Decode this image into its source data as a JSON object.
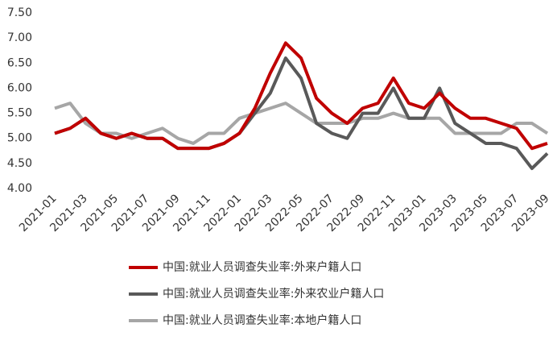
{
  "chart_data": {
    "type": "line",
    "categories": [
      "2021-01",
      null,
      "2021-03",
      null,
      "2021-05",
      null,
      "2021-07",
      null,
      "2021-09",
      null,
      "2021-11",
      null,
      "2022-01",
      null,
      "2022-03",
      null,
      "2022-05",
      null,
      "2022-07",
      null,
      "2022-09",
      null,
      "2022-11",
      null,
      "2023-01",
      null,
      "2023-03",
      null,
      "2023-05",
      null,
      "2023-07",
      null,
      "2023-09"
    ],
    "series": [
      {
        "name": "中国:就业人员调查失业率:外来户籍人口",
        "color": "#c00000",
        "values": [
          5.1,
          5.2,
          5.4,
          5.1,
          5.0,
          5.1,
          5.0,
          5.0,
          4.8,
          4.8,
          4.8,
          4.9,
          5.1,
          5.6,
          6.3,
          6.9,
          6.6,
          5.8,
          5.5,
          5.3,
          5.6,
          5.7,
          6.2,
          5.7,
          5.6,
          5.9,
          5.6,
          5.4,
          5.4,
          5.3,
          5.2,
          4.8,
          4.9
        ]
      },
      {
        "name": "中国:就业人员调查失业率:外来农业户籍人口",
        "color": "#595959",
        "values": [
          5.1,
          5.2,
          5.4,
          5.1,
          5.0,
          5.1,
          5.0,
          5.0,
          4.8,
          4.8,
          4.8,
          4.9,
          5.1,
          5.5,
          5.9,
          6.6,
          6.2,
          5.3,
          5.1,
          5.0,
          5.5,
          5.5,
          6.0,
          5.4,
          5.4,
          6.0,
          5.3,
          5.1,
          4.9,
          4.9,
          4.8,
          4.4,
          4.7
        ]
      },
      {
        "name": "中国:就业人员调查失业率:本地户籍人口",
        "color": "#a6a6a6",
        "values": [
          5.6,
          5.7,
          5.3,
          5.1,
          5.1,
          5.0,
          5.1,
          5.2,
          5.0,
          4.9,
          5.1,
          5.1,
          5.4,
          5.5,
          5.6,
          5.7,
          5.5,
          5.3,
          5.3,
          5.3,
          5.4,
          5.4,
          5.5,
          5.4,
          5.4,
          5.4,
          5.1,
          5.1,
          5.1,
          5.1,
          5.3,
          5.3,
          5.1
        ]
      }
    ],
    "ylim": [
      4.0,
      7.5
    ],
    "yticks": [
      {
        "value": 4.0,
        "label": "4.00"
      },
      {
        "value": 4.5,
        "label": "4.50"
      },
      {
        "value": 5.0,
        "label": "5.00"
      },
      {
        "value": 5.5,
        "label": "5.50"
      },
      {
        "value": 6.0,
        "label": "6.00"
      },
      {
        "value": 6.5,
        "label": "6.50"
      },
      {
        "value": 7.0,
        "label": "7.00"
      },
      {
        "value": 7.5,
        "label": "7.50"
      }
    ],
    "grid": false,
    "legend": "bottom"
  }
}
